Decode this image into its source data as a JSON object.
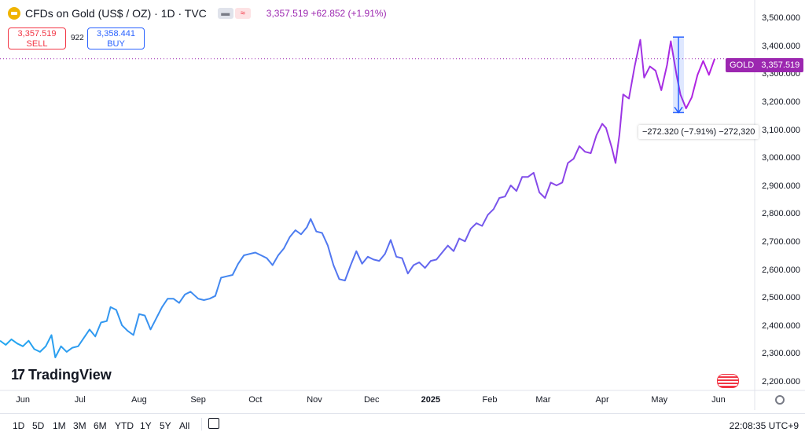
{
  "header": {
    "title": "CFDs on Gold (US$ / OZ) · 1D · TVC",
    "price_line": "3,357.519  +62.852 (+1.91%)",
    "icon_a": "▬",
    "icon_b": "≈"
  },
  "trade": {
    "sell_price": "3,357.519",
    "sell_label": "SELL",
    "spread": "922",
    "buy_price": "3,358.441",
    "buy_label": "BUY"
  },
  "price_tag": {
    "symbol": "GOLD",
    "value": "3,357.519"
  },
  "measure": {
    "label": "−272.320 (−7.91%) −272,320"
  },
  "logo": {
    "text": "TradingView"
  },
  "bottom_bar": {
    "timeframes": [
      "1D",
      "5D",
      "1M",
      "3M",
      "6M",
      "YTD",
      "1Y",
      "5Y",
      "All"
    ],
    "clock": "22:08:35 UTC+9"
  },
  "colors": {
    "line_start": "#22a7f0",
    "line_mid": "#5b6ef0",
    "line_end": "#b620e0",
    "accent": "#9c27b0"
  },
  "chart_data": {
    "type": "line",
    "series_name": "GOLD",
    "y_ticks": [
      "3,500.000",
      "3,400.000",
      "3,300.000",
      "3,200.000",
      "3,100.000",
      "3,000.000",
      "2,900.000",
      "2,800.000",
      "2,700.000",
      "2,600.000",
      "2,500.000",
      "2,400.000",
      "2,300.000",
      "2,200.000"
    ],
    "y_tick_values": [
      3500,
      3400,
      3300,
      3200,
      3100,
      3000,
      2900,
      2800,
      2700,
      2600,
      2500,
      2400,
      2300,
      2200
    ],
    "ylim": [
      2175,
      3545
    ],
    "x_ticks": [
      {
        "label": "Jun",
        "x": "2024-06-01",
        "bold": false
      },
      {
        "label": "Jul",
        "x": "2024-07-01",
        "bold": false
      },
      {
        "label": "Aug",
        "x": "2024-08-01",
        "bold": false
      },
      {
        "label": "Sep",
        "x": "2024-09-01",
        "bold": false
      },
      {
        "label": "Oct",
        "x": "2024-10-01",
        "bold": false
      },
      {
        "label": "Nov",
        "x": "2024-11-01",
        "bold": false
      },
      {
        "label": "Dec",
        "x": "2024-12-01",
        "bold": false
      },
      {
        "label": "2025",
        "x": "2025-01-01",
        "bold": true
      },
      {
        "label": "Feb",
        "x": "2025-02-01",
        "bold": false
      },
      {
        "label": "Mar",
        "x": "2025-03-01",
        "bold": false
      },
      {
        "label": "Apr",
        "x": "2025-04-01",
        "bold": false
      },
      {
        "label": "May",
        "x": "2025-05-01",
        "bold": false
      },
      {
        "label": "Jun",
        "x": "2025-06-01",
        "bold": false
      }
    ],
    "xlim": [
      "2024-05-20",
      "2025-06-20"
    ],
    "points": [
      [
        "2024-05-20",
        2350
      ],
      [
        "2024-05-23",
        2335
      ],
      [
        "2024-05-26",
        2355
      ],
      [
        "2024-05-29",
        2340
      ],
      [
        "2024-06-01",
        2330
      ],
      [
        "2024-06-04",
        2350
      ],
      [
        "2024-06-07",
        2320
      ],
      [
        "2024-06-10",
        2310
      ],
      [
        "2024-06-13",
        2330
      ],
      [
        "2024-06-16",
        2370
      ],
      [
        "2024-06-18",
        2290
      ],
      [
        "2024-06-21",
        2330
      ],
      [
        "2024-06-24",
        2310
      ],
      [
        "2024-06-27",
        2325
      ],
      [
        "2024-06-30",
        2330
      ],
      [
        "2024-07-03",
        2360
      ],
      [
        "2024-07-06",
        2390
      ],
      [
        "2024-07-09",
        2365
      ],
      [
        "2024-07-12",
        2415
      ],
      [
        "2024-07-15",
        2420
      ],
      [
        "2024-07-17",
        2470
      ],
      [
        "2024-07-20",
        2460
      ],
      [
        "2024-07-23",
        2405
      ],
      [
        "2024-07-26",
        2385
      ],
      [
        "2024-07-29",
        2370
      ],
      [
        "2024-08-01",
        2445
      ],
      [
        "2024-08-04",
        2440
      ],
      [
        "2024-08-07",
        2390
      ],
      [
        "2024-08-10",
        2430
      ],
      [
        "2024-08-13",
        2470
      ],
      [
        "2024-08-16",
        2500
      ],
      [
        "2024-08-19",
        2500
      ],
      [
        "2024-08-22",
        2485
      ],
      [
        "2024-08-25",
        2515
      ],
      [
        "2024-08-28",
        2525
      ],
      [
        "2024-09-01",
        2500
      ],
      [
        "2024-09-04",
        2495
      ],
      [
        "2024-09-07",
        2500
      ],
      [
        "2024-09-10",
        2510
      ],
      [
        "2024-09-13",
        2575
      ],
      [
        "2024-09-16",
        2580
      ],
      [
        "2024-09-19",
        2585
      ],
      [
        "2024-09-22",
        2625
      ],
      [
        "2024-09-25",
        2655
      ],
      [
        "2024-09-28",
        2660
      ],
      [
        "2024-10-01",
        2665
      ],
      [
        "2024-10-04",
        2655
      ],
      [
        "2024-10-07",
        2645
      ],
      [
        "2024-10-10",
        2620
      ],
      [
        "2024-10-13",
        2655
      ],
      [
        "2024-10-16",
        2680
      ],
      [
        "2024-10-19",
        2720
      ],
      [
        "2024-10-22",
        2745
      ],
      [
        "2024-10-25",
        2730
      ],
      [
        "2024-10-28",
        2755
      ],
      [
        "2024-10-30",
        2785
      ],
      [
        "2024-11-02",
        2740
      ],
      [
        "2024-11-05",
        2735
      ],
      [
        "2024-11-08",
        2690
      ],
      [
        "2024-11-11",
        2620
      ],
      [
        "2024-11-14",
        2570
      ],
      [
        "2024-11-17",
        2565
      ],
      [
        "2024-11-20",
        2620
      ],
      [
        "2024-11-23",
        2670
      ],
      [
        "2024-11-26",
        2625
      ],
      [
        "2024-11-29",
        2650
      ],
      [
        "2024-12-02",
        2640
      ],
      [
        "2024-12-05",
        2635
      ],
      [
        "2024-12-08",
        2660
      ],
      [
        "2024-12-11",
        2710
      ],
      [
        "2024-12-14",
        2650
      ],
      [
        "2024-12-17",
        2645
      ],
      [
        "2024-12-20",
        2590
      ],
      [
        "2024-12-23",
        2620
      ],
      [
        "2024-12-26",
        2630
      ],
      [
        "2024-12-29",
        2610
      ],
      [
        "2025-01-01",
        2635
      ],
      [
        "2025-01-04",
        2640
      ],
      [
        "2025-01-07",
        2665
      ],
      [
        "2025-01-10",
        2690
      ],
      [
        "2025-01-13",
        2670
      ],
      [
        "2025-01-16",
        2715
      ],
      [
        "2025-01-19",
        2705
      ],
      [
        "2025-01-22",
        2750
      ],
      [
        "2025-01-25",
        2770
      ],
      [
        "2025-01-28",
        2760
      ],
      [
        "2025-01-31",
        2800
      ],
      [
        "2025-02-03",
        2820
      ],
      [
        "2025-02-06",
        2860
      ],
      [
        "2025-02-09",
        2865
      ],
      [
        "2025-02-12",
        2905
      ],
      [
        "2025-02-15",
        2885
      ],
      [
        "2025-02-18",
        2935
      ],
      [
        "2025-02-21",
        2935
      ],
      [
        "2025-02-24",
        2950
      ],
      [
        "2025-02-27",
        2880
      ],
      [
        "2025-03-02",
        2860
      ],
      [
        "2025-03-05",
        2915
      ],
      [
        "2025-03-08",
        2905
      ],
      [
        "2025-03-11",
        2915
      ],
      [
        "2025-03-14",
        2985
      ],
      [
        "2025-03-17",
        3000
      ],
      [
        "2025-03-20",
        3045
      ],
      [
        "2025-03-23",
        3025
      ],
      [
        "2025-03-26",
        3020
      ],
      [
        "2025-03-29",
        3085
      ],
      [
        "2025-04-01",
        3125
      ],
      [
        "2025-04-03",
        3110
      ],
      [
        "2025-04-06",
        3040
      ],
      [
        "2025-04-08",
        2985
      ],
      [
        "2025-04-10",
        3085
      ],
      [
        "2025-04-12",
        3230
      ],
      [
        "2025-04-15",
        3215
      ],
      [
        "2025-04-18",
        3330
      ],
      [
        "2025-04-21",
        3425
      ],
      [
        "2025-04-23",
        3290
      ],
      [
        "2025-04-26",
        3330
      ],
      [
        "2025-04-29",
        3315
      ],
      [
        "2025-05-02",
        3245
      ],
      [
        "2025-05-05",
        3335
      ],
      [
        "2025-05-07",
        3420
      ],
      [
        "2025-05-10",
        3300
      ],
      [
        "2025-05-12",
        3230
      ],
      [
        "2025-05-15",
        3180
      ],
      [
        "2025-05-18",
        3220
      ],
      [
        "2025-05-21",
        3300
      ],
      [
        "2025-05-24",
        3350
      ],
      [
        "2025-05-27",
        3300
      ],
      [
        "2025-05-30",
        3357.519
      ]
    ],
    "last_price": 3357.519,
    "measure_from": [
      "2025-05-11",
      3435
    ],
    "measure_to": [
      "2025-05-11",
      3165
    ]
  }
}
